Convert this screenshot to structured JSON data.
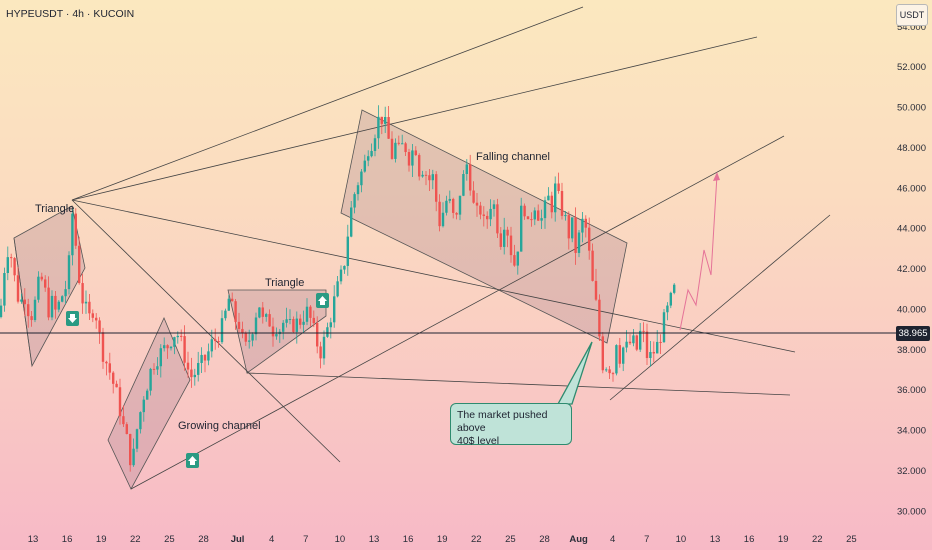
{
  "header": {
    "ticker": "HYPEUSDT · 4h · KUCOIN",
    "unit": "USDT"
  },
  "current_price": "38.965",
  "annotations": {
    "triangle_left": "Triangle",
    "triangle_mid": "Triangle",
    "growing_channel": "Growing channel",
    "falling_channel": "Falling channel",
    "callout_line1": "The market pushed above",
    "callout_line2": "40$ level"
  },
  "icons": {
    "down": "arrow-down-icon",
    "up": "arrow-up-icon"
  },
  "colors": {
    "up": "#26a69a",
    "down": "#ef5350",
    "projection": "#e57398",
    "price_line": "#1e2330"
  },
  "chart_data": {
    "type": "candlestick",
    "title": "HYPEUSDT · 4h · KUCOIN",
    "y_ticks": [
      "54.000",
      "52.000",
      "50.000",
      "48.000",
      "46.000",
      "44.000",
      "42.000",
      "40.000",
      "38.000",
      "36.000",
      "34.000",
      "32.000",
      "30.000"
    ],
    "x_ticks": [
      "13",
      "16",
      "19",
      "22",
      "25",
      "28",
      "Jul",
      "4",
      "7",
      "10",
      "13",
      "16",
      "19",
      "22",
      "25",
      "28",
      "Aug",
      "4",
      "7",
      "10",
      "13",
      "16",
      "19",
      "22",
      "25"
    ],
    "ylim": [
      29.3,
      55.3
    ],
    "price_path": [
      [
        0,
        39.6
      ],
      [
        4,
        41.9
      ],
      [
        8,
        43.0
      ],
      [
        12,
        42.5
      ],
      [
        16,
        41.0
      ],
      [
        20,
        40.2
      ],
      [
        24,
        40.8
      ],
      [
        28,
        40.0
      ],
      [
        32,
        39.7
      ],
      [
        36,
        40.5
      ],
      [
        40,
        41.6
      ],
      [
        44,
        41.2
      ],
      [
        48,
        39.9
      ],
      [
        52,
        40.3
      ],
      [
        56,
        39.8
      ],
      [
        60,
        40.4
      ],
      [
        64,
        40.9
      ],
      [
        68,
        41.3
      ],
      [
        70,
        43.2
      ],
      [
        72,
        44.9
      ],
      [
        75,
        43.6
      ],
      [
        78,
        42.0
      ],
      [
        81,
        40.8
      ],
      [
        84,
        40.2
      ],
      [
        87,
        39.8
      ],
      [
        90,
        39.5
      ],
      [
        94,
        40.2
      ],
      [
        97,
        39.5
      ],
      [
        100,
        38.5
      ],
      [
        104,
        37.6
      ],
      [
        108,
        37.2
      ],
      [
        112,
        36.5
      ],
      [
        116,
        35.9
      ],
      [
        120,
        35.0
      ],
      [
        124,
        34.0
      ],
      [
        128,
        33.3
      ],
      [
        132,
        32.1
      ],
      [
        136,
        33.8
      ],
      [
        140,
        34.8
      ],
      [
        144,
        35.8
      ],
      [
        148,
        36.4
      ],
      [
        152,
        37.2
      ],
      [
        156,
        37.5
      ],
      [
        160,
        37.8
      ],
      [
        164,
        38.0
      ],
      [
        168,
        38.2
      ],
      [
        172,
        38.6
      ],
      [
        176,
        38.9
      ],
      [
        180,
        38.5
      ],
      [
        184,
        37.8
      ],
      [
        188,
        37.0
      ],
      [
        192,
        36.6
      ],
      [
        196,
        36.9
      ],
      [
        200,
        37.2
      ],
      [
        204,
        37.4
      ],
      [
        208,
        37.8
      ],
      [
        212,
        38.3
      ],
      [
        216,
        38.5
      ],
      [
        220,
        38.9
      ],
      [
        224,
        39.3
      ],
      [
        228,
        40.6
      ],
      [
        232,
        40.0
      ],
      [
        236,
        39.4
      ],
      [
        240,
        39.2
      ],
      [
        244,
        37.9
      ],
      [
        248,
        38.3
      ],
      [
        252,
        39.0
      ],
      [
        256,
        39.8
      ],
      [
        260,
        40.3
      ],
      [
        264,
        39.0
      ],
      [
        268,
        39.7
      ],
      [
        272,
        38.9
      ],
      [
        276,
        39.2
      ],
      [
        280,
        39.0
      ],
      [
        284,
        39.4
      ],
      [
        288,
        39.0
      ],
      [
        292,
        39.2
      ],
      [
        296,
        39.3
      ],
      [
        300,
        39.4
      ],
      [
        304,
        39.7
      ],
      [
        308,
        39.9
      ],
      [
        312,
        39.2
      ],
      [
        316,
        38.5
      ],
      [
        320,
        37.8
      ],
      [
        324,
        38.4
      ],
      [
        328,
        39.1
      ],
      [
        332,
        39.9
      ],
      [
        336,
        40.8
      ],
      [
        340,
        41.4
      ],
      [
        344,
        42.2
      ],
      [
        348,
        43.8
      ],
      [
        352,
        45.2
      ],
      [
        356,
        46.0
      ],
      [
        360,
        46.6
      ],
      [
        364,
        47.0
      ],
      [
        368,
        48.0
      ],
      [
        372,
        48.3
      ],
      [
        376,
        49.0
      ],
      [
        380,
        49.6
      ],
      [
        384,
        49.3
      ],
      [
        388,
        48.5
      ],
      [
        392,
        47.6
      ],
      [
        396,
        48.2
      ],
      [
        400,
        47.6
      ],
      [
        404,
        48.4
      ],
      [
        408,
        47.4
      ],
      [
        412,
        47.8
      ],
      [
        416,
        48.0
      ],
      [
        420,
        46.6
      ],
      [
        424,
        47.2
      ],
      [
        428,
        46.2
      ],
      [
        432,
        46.8
      ],
      [
        436,
        45.4
      ],
      [
        440,
        44.2
      ],
      [
        444,
        45.0
      ],
      [
        448,
        45.6
      ],
      [
        452,
        44.7
      ],
      [
        456,
        44.2
      ],
      [
        460,
        45.8
      ],
      [
        464,
        46.6
      ],
      [
        468,
        47.4
      ],
      [
        472,
        45.4
      ],
      [
        476,
        44.6
      ],
      [
        480,
        45.0
      ],
      [
        484,
        44.2
      ],
      [
        488,
        44.6
      ],
      [
        492,
        45.6
      ],
      [
        496,
        44.6
      ],
      [
        500,
        43.2
      ],
      [
        504,
        44.4
      ],
      [
        508,
        43.8
      ],
      [
        512,
        42.6
      ],
      [
        516,
        42.0
      ],
      [
        520,
        44.6
      ],
      [
        524,
        45.2
      ],
      [
        528,
        44.0
      ],
      [
        532,
        44.8
      ],
      [
        536,
        45.4
      ],
      [
        540,
        44.2
      ],
      [
        544,
        44.8
      ],
      [
        548,
        45.5
      ],
      [
        552,
        45.1
      ],
      [
        556,
        46.2
      ],
      [
        560,
        45.0
      ],
      [
        564,
        44.8
      ],
      [
        568,
        43.6
      ],
      [
        572,
        44.2
      ],
      [
        576,
        42.8
      ],
      [
        580,
        43.8
      ],
      [
        584,
        44.6
      ],
      [
        588,
        43.2
      ],
      [
        592,
        41.4
      ],
      [
        596,
        40.2
      ],
      [
        600,
        38.4
      ],
      [
        604,
        36.8
      ],
      [
        608,
        37.6
      ],
      [
        612,
        36.4
      ],
      [
        616,
        38.6
      ],
      [
        620,
        37.6
      ],
      [
        624,
        38.2
      ],
      [
        628,
        38.0
      ],
      [
        632,
        38.6
      ],
      [
        636,
        37.8
      ],
      [
        640,
        38.8
      ],
      [
        644,
        38.6
      ],
      [
        648,
        37.4
      ],
      [
        652,
        37.8
      ],
      [
        656,
        38.0
      ],
      [
        660,
        38.6
      ],
      [
        664,
        39.4
      ],
      [
        668,
        40.0
      ],
      [
        672,
        40.6
      ],
      [
        676,
        41.2
      ]
    ]
  }
}
